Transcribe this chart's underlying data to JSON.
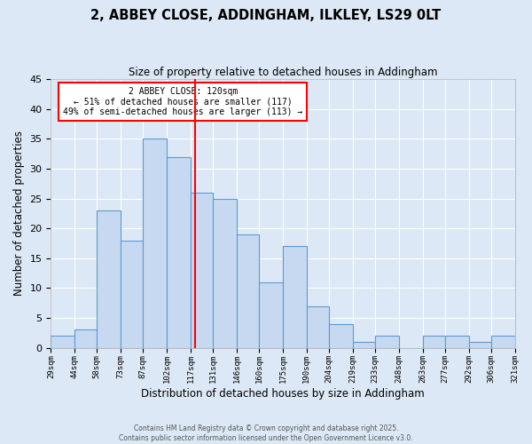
{
  "title": "2, ABBEY CLOSE, ADDINGHAM, ILKLEY, LS29 0LT",
  "subtitle": "Size of property relative to detached houses in Addingham",
  "xlabel": "Distribution of detached houses by size in Addingham",
  "ylabel": "Number of detached properties",
  "bin_labels": [
    "29sqm",
    "44sqm",
    "58sqm",
    "73sqm",
    "87sqm",
    "102sqm",
    "117sqm",
    "131sqm",
    "146sqm",
    "160sqm",
    "175sqm",
    "190sqm",
    "204sqm",
    "219sqm",
    "233sqm",
    "248sqm",
    "263sqm",
    "277sqm",
    "292sqm",
    "306sqm",
    "321sqm"
  ],
  "bin_edges": [
    29,
    44,
    58,
    73,
    87,
    102,
    117,
    131,
    146,
    160,
    175,
    190,
    204,
    219,
    233,
    248,
    263,
    277,
    292,
    306,
    321
  ],
  "values": [
    2,
    3,
    23,
    18,
    35,
    32,
    26,
    25,
    19,
    11,
    17,
    7,
    4,
    1,
    2,
    0,
    2,
    2,
    1,
    2
  ],
  "bar_color": "#c6d9f0",
  "bar_edge_color": "#5b9bd5",
  "vline_x": 120,
  "vline_color": "red",
  "annotation_title": "2 ABBEY CLOSE: 120sqm",
  "annotation_line1": "← 51% of detached houses are smaller (117)",
  "annotation_line2": "49% of semi-detached houses are larger (113) →",
  "annotation_box_color": "white",
  "annotation_box_edge": "red",
  "ylim": [
    0,
    45
  ],
  "yticks": [
    0,
    5,
    10,
    15,
    20,
    25,
    30,
    35,
    40,
    45
  ],
  "background_color": "#dce8f5",
  "plot_bg_color": "#dce8f5",
  "footer1": "Contains HM Land Registry data © Crown copyright and database right 2025.",
  "footer2": "Contains public sector information licensed under the Open Government Licence v3.0."
}
